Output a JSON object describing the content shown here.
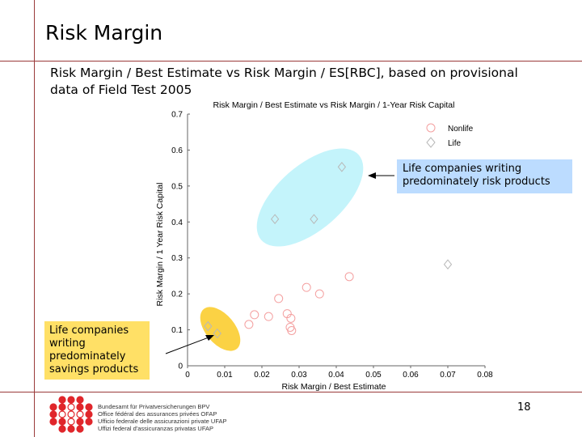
{
  "slide": {
    "title": "Risk Margin",
    "subtitle": "Risk Margin / Best Estimate vs Risk Margin / ES[RBC], based on provisional data of Field Test 2005",
    "page_number": "18"
  },
  "callouts": {
    "risk_products": "Life companies writing predominately risk products",
    "savings_products": "Life companies writing predominately savings products"
  },
  "colors": {
    "nonlife": "#f4a0a0",
    "life": "#b8b8b8",
    "risk_ellipse": "#c4f4fb",
    "savings_ellipse": "#fbd244",
    "risk_callout": "#bcdcff",
    "savings_callout": "#ffe066",
    "rule": "#9a3a3a"
  },
  "footer": {
    "org_lines": [
      "Bundesamt für Privatversicherungen BPV",
      "Office fédéral des assurances privées OFAP",
      "Ufficio federale delle assicurazioni private UFAP",
      "Uffizi federal d'assicuranzas privatas UFAP"
    ]
  },
  "chart_data": {
    "type": "scatter",
    "title": "Risk Margin / Best Estimate vs Risk Margin / 1-Year Risk Capital",
    "xlabel": "Risk Margin / Best Estimate",
    "ylabel": "Risk Margin / 1 Year Risk Capital",
    "xlim": [
      0,
      0.08
    ],
    "ylim": [
      0,
      0.7
    ],
    "x_ticks": [
      "0",
      "0.01",
      "0.02",
      "0.03",
      "0.04",
      "0.05",
      "0.06",
      "0.07",
      "0.08"
    ],
    "y_ticks": [
      "0",
      "0.1",
      "0.2",
      "0.3",
      "0.4",
      "0.5",
      "0.6",
      "0.7"
    ],
    "grid": false,
    "legend_position": "top-right",
    "series": [
      {
        "name": "Nonlife",
        "marker": "circle",
        "points": [
          [
            0.0165,
            0.115
          ],
          [
            0.018,
            0.142
          ],
          [
            0.0218,
            0.137
          ],
          [
            0.0245,
            0.187
          ],
          [
            0.0268,
            0.145
          ],
          [
            0.0276,
            0.107
          ],
          [
            0.028,
            0.098
          ],
          [
            0.0278,
            0.132
          ],
          [
            0.032,
            0.218
          ],
          [
            0.0355,
            0.2
          ],
          [
            0.0435,
            0.248
          ]
        ]
      },
      {
        "name": "Life",
        "marker": "diamond",
        "points": [
          [
            0.008,
            0.09
          ],
          [
            0.0055,
            0.11
          ],
          [
            0.0235,
            0.408
          ],
          [
            0.034,
            0.408
          ],
          [
            0.0415,
            0.553
          ],
          [
            0.07,
            0.282
          ]
        ]
      }
    ],
    "annotations": [
      {
        "label": "Life companies writing predominately risk products",
        "target": [
          0.042,
          0.535
        ]
      },
      {
        "label": "Life companies writing predominately savings products",
        "target": [
          0.0092,
          0.092
        ]
      }
    ]
  }
}
